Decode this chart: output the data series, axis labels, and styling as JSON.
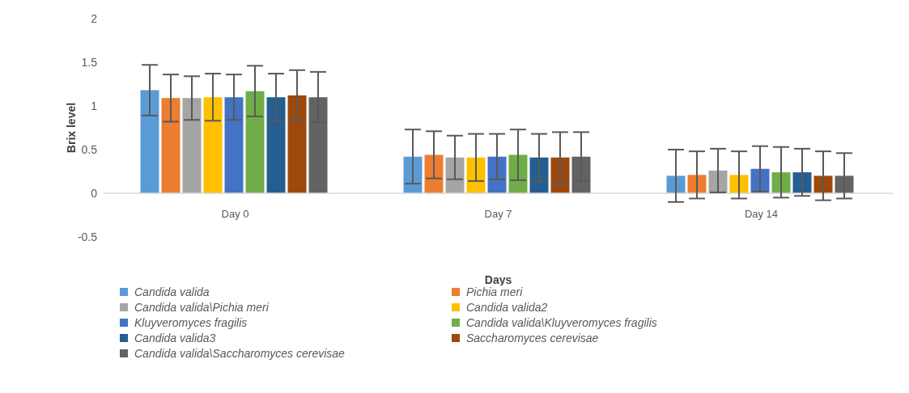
{
  "chart_data": {
    "type": "bar",
    "xlabel": "Days",
    "ylabel": "Brix level",
    "categories": [
      "Day 0",
      "Day 7",
      "Day 14"
    ],
    "ylim": [
      -0.5,
      2
    ],
    "yticks": [
      -0.5,
      0,
      0.5,
      1,
      1.5,
      2
    ],
    "grid": false,
    "legend": "bottom",
    "series": [
      {
        "name": "Candida valida",
        "color": "#5b9bd5",
        "values": [
          1.18,
          0.42,
          0.2
        ],
        "errors": [
          0.29,
          0.31,
          0.3
        ]
      },
      {
        "name": "Pichia meri",
        "color": "#ed7d31",
        "values": [
          1.09,
          0.44,
          0.21
        ],
        "errors": [
          0.27,
          0.27,
          0.27
        ]
      },
      {
        "name": "Candida valida\\Pichia meri",
        "color": "#a5a5a5",
        "values": [
          1.09,
          0.41,
          0.26
        ],
        "errors": [
          0.25,
          0.25,
          0.25
        ]
      },
      {
        "name": "Candida valida2",
        "color": "#ffc000",
        "values": [
          1.1,
          0.41,
          0.21
        ],
        "errors": [
          0.27,
          0.27,
          0.27
        ]
      },
      {
        "name": "Kluyveromyces fragilis",
        "color": "#4472c4",
        "values": [
          1.1,
          0.42,
          0.28
        ],
        "errors": [
          0.26,
          0.26,
          0.26
        ]
      },
      {
        "name": "Candida valida\\Kluyveromyces fragilis",
        "color": "#70ad47",
        "values": [
          1.17,
          0.44,
          0.24
        ],
        "errors": [
          0.29,
          0.29,
          0.29
        ]
      },
      {
        "name": "Candida valida3",
        "color": "#255e91",
        "values": [
          1.1,
          0.41,
          0.24
        ],
        "errors": [
          0.27,
          0.27,
          0.27
        ]
      },
      {
        "name": "Saccharomyces cerevisae",
        "color": "#9e480e",
        "values": [
          1.12,
          0.41,
          0.2
        ],
        "errors": [
          0.29,
          0.29,
          0.28
        ]
      },
      {
        "name": "Candida valida\\Saccharomyces cerevisae",
        "color": "#636363",
        "values": [
          1.1,
          0.42,
          0.2
        ],
        "errors": [
          0.29,
          0.28,
          0.26
        ]
      }
    ]
  }
}
